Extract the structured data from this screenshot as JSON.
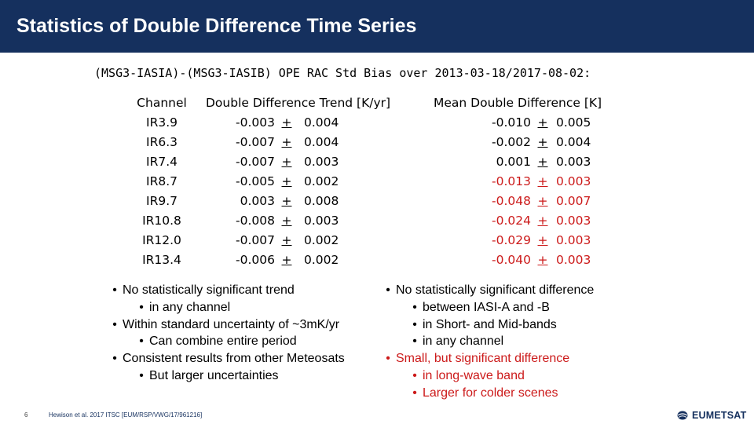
{
  "header": {
    "title": "Statistics of Double Difference Time Series"
  },
  "subtitle": "(MSG3-IASIA)-(MSG3-IASIB) OPE RAC Std Bias over 2013-03-18/2017-08-02:",
  "table": {
    "headers": {
      "channel": "Channel",
      "trend": "Double Difference Trend [K/yr]",
      "mean": "Mean Double Difference [K]"
    },
    "pm_symbol": "+",
    "rows": [
      {
        "channel": "IR3.9",
        "trend": "-0.003",
        "trend_unc": "0.004",
        "mean": "-0.010",
        "mean_unc": "0.005",
        "mean_highlight": false
      },
      {
        "channel": "IR6.3",
        "trend": "-0.007",
        "trend_unc": "0.004",
        "mean": "-0.002",
        "mean_unc": "0.004",
        "mean_highlight": false
      },
      {
        "channel": "IR7.4",
        "trend": "-0.007",
        "trend_unc": "0.003",
        "mean": "0.001",
        "mean_unc": "0.003",
        "mean_highlight": false
      },
      {
        "channel": "IR8.7",
        "trend": "-0.005",
        "trend_unc": "0.002",
        "mean": "-0.013",
        "mean_unc": "0.003",
        "mean_highlight": true
      },
      {
        "channel": "IR9.7",
        "trend": "0.003",
        "trend_unc": "0.008",
        "mean": "-0.048",
        "mean_unc": "0.007",
        "mean_highlight": true
      },
      {
        "channel": "IR10.8",
        "trend": "-0.008",
        "trend_unc": "0.003",
        "mean": "-0.024",
        "mean_unc": "0.003",
        "mean_highlight": true
      },
      {
        "channel": "IR12.0",
        "trend": "-0.007",
        "trend_unc": "0.002",
        "mean": "-0.029",
        "mean_unc": "0.003",
        "mean_highlight": true
      },
      {
        "channel": "IR13.4",
        "trend": "-0.006",
        "trend_unc": "0.002",
        "mean": "-0.040",
        "mean_unc": "0.003",
        "mean_highlight": true
      }
    ]
  },
  "bullets_left": [
    {
      "level": 1,
      "text": "No statistically significant trend"
    },
    {
      "level": 2,
      "text": "in any channel"
    },
    {
      "level": 1,
      "text": "Within standard uncertainty of ~3mK/yr"
    },
    {
      "level": 2,
      "text": "Can combine entire period"
    },
    {
      "level": 1,
      "text": "Consistent results from other Meteosats"
    },
    {
      "level": 2,
      "text": "But larger uncertainties"
    }
  ],
  "bullets_right": [
    {
      "level": 1,
      "text": "No statistically significant difference",
      "red": false
    },
    {
      "level": 2,
      "text": "between IASI-A and -B",
      "red": false
    },
    {
      "level": 2,
      "text": "in Short- and Mid-bands",
      "red": false
    },
    {
      "level": 2,
      "text": "in any channel",
      "red": false
    },
    {
      "level": 1,
      "text": "Small, but significant difference",
      "red": true
    },
    {
      "level": 2,
      "text": "in long-wave band",
      "red": true
    },
    {
      "level": 2,
      "text": "Larger for colder scenes",
      "red": true
    }
  ],
  "bullet_glyph": "•",
  "footer": {
    "page_number": "6",
    "reference": "Hewison et al. 2017 ITSC [EUM/RSP/VWG/17/961216]",
    "logo_text": "EUMETSAT"
  },
  "colors": {
    "title_bar": "#15305e",
    "highlight_red": "#cc1a1a"
  }
}
